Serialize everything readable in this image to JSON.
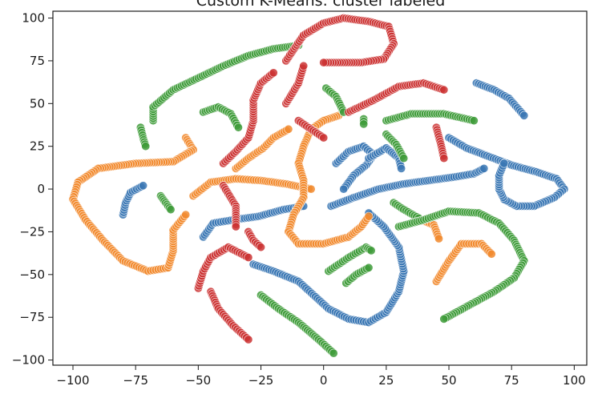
{
  "chart_data": {
    "type": "scatter",
    "title": "Custom K-Means: cluster labeled",
    "xlabel": "",
    "ylabel": "",
    "xlim": [
      -108,
      105
    ],
    "ylim": [
      -103,
      104
    ],
    "xticks": [
      -100,
      -75,
      -50,
      -25,
      0,
      25,
      50,
      75,
      100
    ],
    "yticks": [
      100,
      75,
      50,
      25,
      0,
      -25,
      -50,
      -75,
      -100
    ],
    "grid": false,
    "legend": "none",
    "colors": {
      "blue": "#3a77b4",
      "orange": "#f28a2e",
      "green": "#3f9c3a",
      "red": "#cc3333"
    },
    "series": [
      {
        "color": "blue",
        "strokes": [
          [
            [
              61,
              62
            ],
            [
              68,
              58
            ],
            [
              74,
              53
            ],
            [
              80,
              43
            ]
          ],
          [
            [
              50,
              30
            ],
            [
              57,
              24
            ],
            [
              66,
              19
            ],
            [
              75,
              14
            ],
            [
              85,
              10
            ],
            [
              93,
              6
            ],
            [
              96,
              0
            ],
            [
              92,
              -5
            ],
            [
              84,
              -10
            ],
            [
              77,
              -10
            ],
            [
              72,
              -6
            ],
            [
              70,
              0
            ],
            [
              70,
              8
            ],
            [
              72,
              15
            ]
          ],
          [
            [
              3,
              -10
            ],
            [
              12,
              -5
            ],
            [
              22,
              0
            ],
            [
              32,
              3
            ],
            [
              42,
              5
            ],
            [
              52,
              7
            ],
            [
              60,
              9
            ],
            [
              64,
              12
            ]
          ],
          [
            [
              5,
              15
            ],
            [
              10,
              22
            ],
            [
              16,
              25
            ],
            [
              20,
              20
            ],
            [
              17,
              14
            ],
            [
              12,
              8
            ],
            [
              8,
              0
            ]
          ],
          [
            [
              18,
              18
            ],
            [
              25,
              24
            ],
            [
              30,
              18
            ],
            [
              31,
              12
            ]
          ],
          [
            [
              -48,
              -28
            ],
            [
              -44,
              -20
            ],
            [
              -36,
              -18
            ],
            [
              -26,
              -16
            ],
            [
              -16,
              -12
            ],
            [
              -8,
              -10
            ]
          ],
          [
            [
              -28,
              -44
            ],
            [
              -20,
              -48
            ],
            [
              -10,
              -54
            ],
            [
              -4,
              -62
            ],
            [
              2,
              -70
            ],
            [
              10,
              -76
            ],
            [
              18,
              -78
            ],
            [
              25,
              -72
            ],
            [
              30,
              -60
            ],
            [
              32,
              -48
            ],
            [
              30,
              -34
            ],
            [
              24,
              -22
            ],
            [
              18,
              -14
            ]
          ],
          [
            [
              -80,
              -15
            ],
            [
              -79,
              -8
            ],
            [
              -77,
              -2
            ],
            [
              -72,
              2
            ]
          ]
        ]
      },
      {
        "color": "orange",
        "strokes": [
          [
            [
              -55,
              30
            ],
            [
              -52,
              23
            ],
            [
              -60,
              16
            ],
            [
              -75,
              15
            ],
            [
              -90,
              12
            ],
            [
              -98,
              4
            ],
            [
              -100,
              -6
            ],
            [
              -95,
              -18
            ],
            [
              -88,
              -30
            ],
            [
              -80,
              -42
            ],
            [
              -70,
              -48
            ],
            [
              -62,
              -46
            ],
            [
              -60,
              -36
            ],
            [
              -60,
              -24
            ],
            [
              -55,
              -15
            ]
          ],
          [
            [
              -52,
              -4
            ],
            [
              -45,
              4
            ],
            [
              -35,
              6
            ],
            [
              -25,
              5
            ],
            [
              -15,
              3
            ],
            [
              -5,
              0
            ]
          ],
          [
            [
              -35,
              12
            ],
            [
              -30,
              18
            ],
            [
              -24,
              24
            ],
            [
              -20,
              30
            ],
            [
              -14,
              35
            ]
          ],
          [
            [
              6,
              43
            ],
            [
              0,
              40
            ],
            [
              -5,
              35
            ],
            [
              -8,
              25
            ],
            [
              -10,
              15
            ],
            [
              -8,
              5
            ],
            [
              -8,
              -5
            ],
            [
              -12,
              -15
            ],
            [
              -14,
              -25
            ],
            [
              -10,
              -32
            ],
            [
              0,
              -32
            ],
            [
              10,
              -28
            ],
            [
              15,
              -22
            ],
            [
              18,
              -16
            ]
          ],
          [
            [
              37,
              -17
            ],
            [
              44,
              -21
            ],
            [
              46,
              -29
            ]
          ],
          [
            [
              45,
              -54
            ],
            [
              50,
              -42
            ],
            [
              55,
              -32
            ],
            [
              63,
              -32
            ],
            [
              67,
              -38
            ]
          ]
        ]
      },
      {
        "color": "green",
        "strokes": [
          [
            [
              -68,
              40
            ],
            [
              -68,
              48
            ],
            [
              -60,
              58
            ],
            [
              -50,
              65
            ],
            [
              -40,
              72
            ],
            [
              -30,
              78
            ],
            [
              -20,
              82
            ],
            [
              -10,
              84
            ]
          ],
          [
            [
              -48,
              45
            ],
            [
              -42,
              48
            ],
            [
              -37,
              44
            ],
            [
              -34,
              36
            ]
          ],
          [
            [
              -73,
              36
            ],
            [
              -72,
              30
            ],
            [
              -71,
              25
            ]
          ],
          [
            [
              -65,
              -4
            ],
            [
              -63,
              -8
            ],
            [
              -61,
              -12
            ]
          ],
          [
            [
              1,
              59
            ],
            [
              5,
              54
            ],
            [
              8,
              45
            ]
          ],
          [
            [
              16,
              41
            ],
            [
              16,
              38
            ]
          ],
          [
            [
              25,
              40
            ],
            [
              35,
              44
            ],
            [
              48,
              44
            ],
            [
              60,
              40
            ]
          ],
          [
            [
              25,
              32
            ],
            [
              29,
              26
            ],
            [
              32,
              18
            ]
          ],
          [
            [
              28,
              -8
            ],
            [
              32,
              -12
            ],
            [
              38,
              -17
            ]
          ],
          [
            [
              30,
              -22
            ],
            [
              40,
              -18
            ],
            [
              50,
              -13
            ],
            [
              62,
              -14
            ],
            [
              70,
              -20
            ],
            [
              76,
              -30
            ],
            [
              80,
              -42
            ],
            [
              76,
              -52
            ],
            [
              68,
              -60
            ],
            [
              58,
              -68
            ],
            [
              48,
              -76
            ]
          ],
          [
            [
              2,
              -48
            ],
            [
              10,
              -40
            ],
            [
              17,
              -34
            ],
            [
              19,
              -36
            ]
          ],
          [
            [
              9,
              -55
            ],
            [
              13,
              -50
            ],
            [
              18,
              -46
            ]
          ],
          [
            [
              -25,
              -62
            ],
            [
              -18,
              -70
            ],
            [
              -10,
              -78
            ],
            [
              -2,
              -88
            ],
            [
              4,
              -96
            ]
          ]
        ]
      },
      {
        "color": "red",
        "strokes": [
          [
            [
              -30,
              -25
            ],
            [
              -28,
              -30
            ],
            [
              -25,
              -34
            ]
          ],
          [
            [
              -40,
              2
            ],
            [
              -35,
              -10
            ],
            [
              -35,
              -22
            ]
          ],
          [
            [
              -40,
              15
            ],
            [
              -35,
              22
            ],
            [
              -30,
              30
            ],
            [
              -28,
              40
            ],
            [
              -28,
              52
            ],
            [
              -25,
              62
            ],
            [
              -20,
              68
            ]
          ],
          [
            [
              -50,
              -58
            ],
            [
              -48,
              -48
            ],
            [
              -45,
              -40
            ],
            [
              -38,
              -34
            ],
            [
              -30,
              -40
            ]
          ],
          [
            [
              -45,
              -60
            ],
            [
              -42,
              -70
            ],
            [
              -36,
              -80
            ],
            [
              -30,
              -88
            ]
          ],
          [
            [
              -15,
              75
            ],
            [
              -8,
              90
            ],
            [
              0,
              97
            ],
            [
              8,
              100
            ],
            [
              18,
              98
            ],
            [
              26,
              95
            ],
            [
              28,
              85
            ],
            [
              24,
              76
            ],
            [
              15,
              74
            ],
            [
              0,
              74
            ]
          ],
          [
            [
              -15,
              50
            ],
            [
              -10,
              62
            ],
            [
              -8,
              72
            ]
          ],
          [
            [
              -10,
              40
            ],
            [
              -5,
              35
            ],
            [
              0,
              30
            ]
          ],
          [
            [
              10,
              45
            ],
            [
              20,
              52
            ],
            [
              30,
              60
            ],
            [
              40,
              62
            ],
            [
              48,
              58
            ]
          ],
          [
            [
              45,
              36
            ],
            [
              47,
              25
            ],
            [
              48,
              18
            ]
          ]
        ]
      }
    ]
  }
}
